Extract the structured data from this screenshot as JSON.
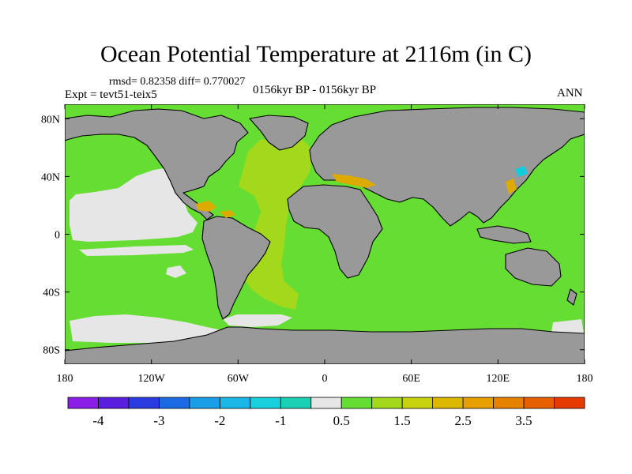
{
  "title": "Ocean Potential Temperature at 2116m (in C)",
  "stats": "rmsd= 0.82358 diff= 0.770027",
  "experiment": "Expt = tevt51-teix5",
  "period": "0156kyr BP - 0156kyr BP",
  "season": "ANN",
  "map": {
    "lon_range": [
      -180,
      180
    ],
    "lat_range": [
      -90,
      90
    ],
    "x_tick_labels": [
      "180",
      "120W",
      "60W",
      "0",
      "60E",
      "120E",
      "180"
    ],
    "y_tick_labels": [
      "80N",
      "40N",
      "0",
      "40S",
      "80S"
    ],
    "colors": {
      "land": "#999999",
      "ocean_0_5_to_1": "#66dd33",
      "ocean_1_to_1_5": "#a3d81b",
      "ocean_minus0_5_to_0_5": "#e6e6e6",
      "ocean_2_to_3": "#ddaa00",
      "ocean_minus1_5_to_minus1": "#11ccdd",
      "coastline": "#000000"
    }
  },
  "colorbar": {
    "colors": [
      "#8a1ee6",
      "#5a1ede",
      "#2a3ce0",
      "#1a6be3",
      "#1a9ee6",
      "#1ab7e6",
      "#1ad0dc",
      "#1ad0b4",
      "#e6e6e6",
      "#66dd33",
      "#a3d81b",
      "#c8d20e",
      "#ddb800",
      "#e6a000",
      "#e68200",
      "#e66000",
      "#e63a00"
    ],
    "labels": [
      "-4",
      "-3",
      "-2",
      "-1",
      "0.5",
      "1.5",
      "2.5",
      "3.5"
    ]
  }
}
